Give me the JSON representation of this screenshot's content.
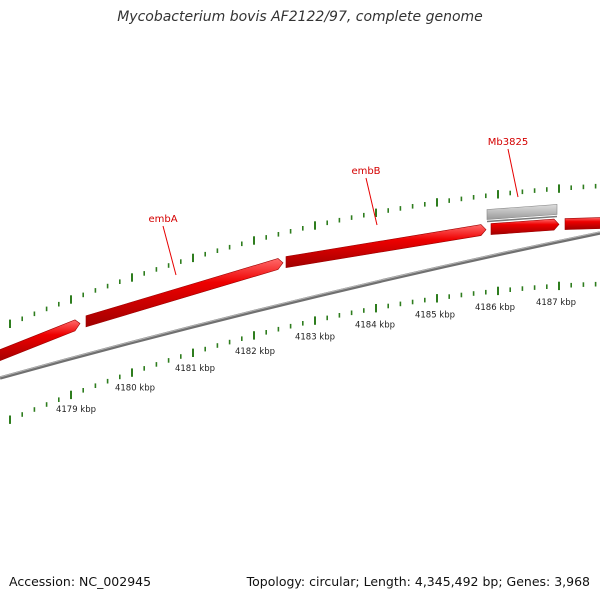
{
  "title": "Mycobacterium bovis AF2122/97, complete genome",
  "footer": {
    "accession": "Accession: NC_002945",
    "summary": "Topology: circular; Length: 4,345,492 bp; Genes: 3,968"
  },
  "colors": {
    "gene": "#e60000",
    "gene_highlight": "#ff5a5a",
    "gene_shadow": "#9c0000",
    "pseudogene": "#c4c4c4",
    "backbone": "#7a7a7a",
    "ticks": "#2e7d1e"
  },
  "genes": [
    {
      "name": "",
      "label": false
    },
    {
      "name": "embA",
      "label": true
    },
    {
      "name": "embB",
      "label": true
    },
    {
      "name": "Mb3825",
      "label": true
    },
    {
      "name": "",
      "label": false
    }
  ],
  "scale_labels": [
    "4179 kbp",
    "4180 kbp",
    "4181 kbp",
    "4182 kbp",
    "4183 kbp",
    "4184 kbp",
    "4185 kbp",
    "4186 kbp",
    "4187 kbp"
  ]
}
